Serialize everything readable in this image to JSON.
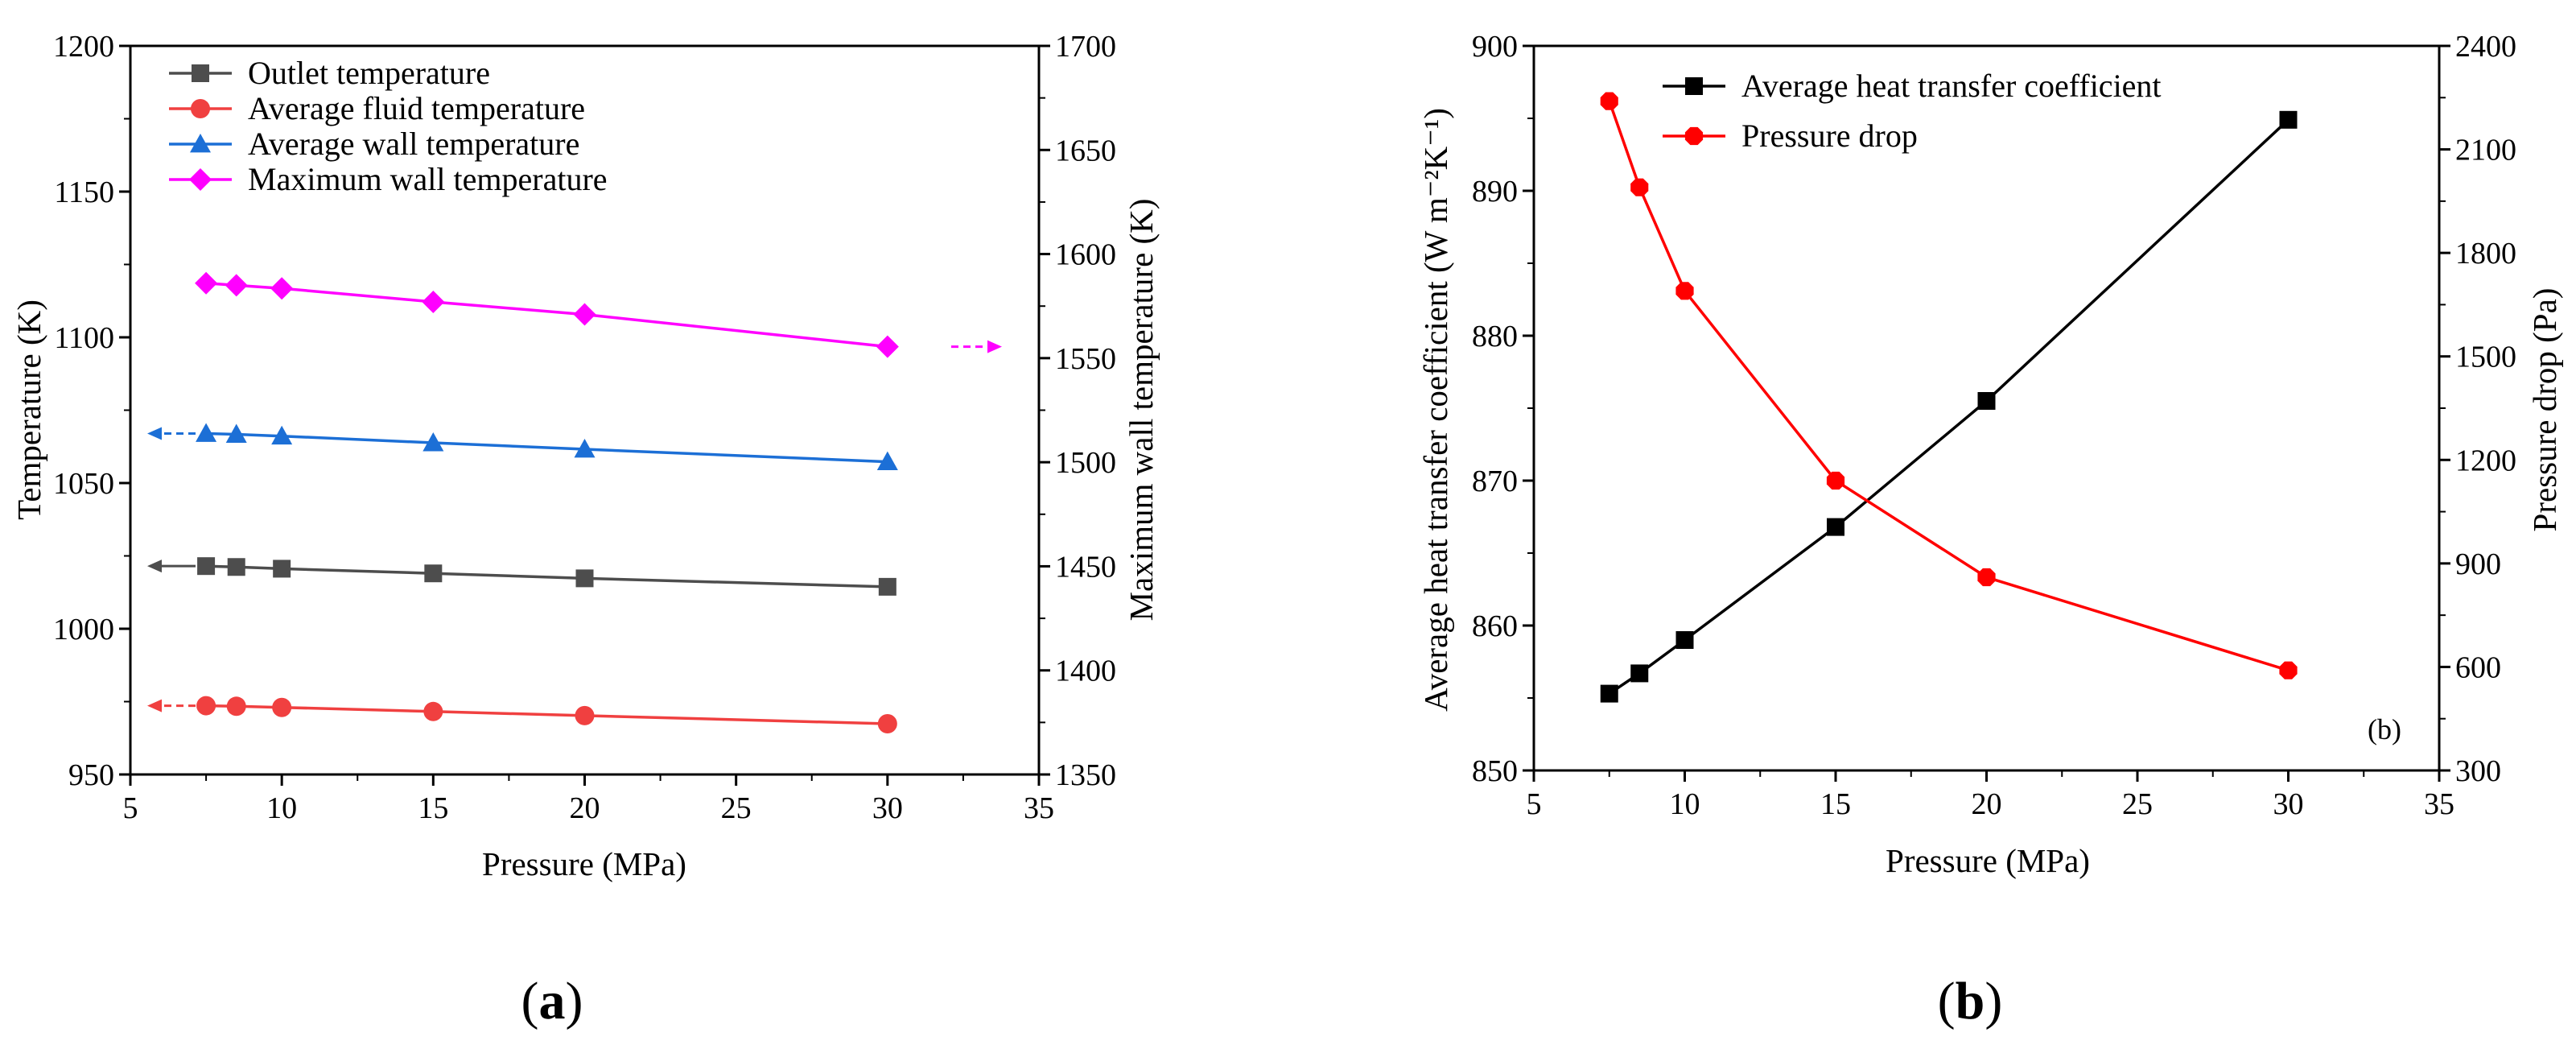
{
  "chart_data": [
    {
      "type": "line",
      "panel_label": "a",
      "panel_open": "(",
      "panel_close": ")",
      "xlabel": "Pressure (MPa)",
      "ylabel": "Temperature (K)",
      "y2label": "Maximum wall temperature (K)",
      "xlim": [
        5,
        35
      ],
      "ylim": [
        950,
        1200
      ],
      "y2lim": [
        1350,
        1700
      ],
      "xticks": [
        "5",
        "10",
        "15",
        "20",
        "25",
        "30",
        "35"
      ],
      "yticks": [
        "950",
        "1000",
        "1050",
        "1100",
        "1150",
        "1200"
      ],
      "y2ticks": [
        "1350",
        "1400",
        "1450",
        "1500",
        "1550",
        "1600",
        "1650",
        "1700"
      ],
      "legend_position": "top",
      "x": [
        7.5,
        8.5,
        10,
        15,
        20,
        30
      ],
      "series": [
        {
          "name": "Outlet temperature",
          "axis": "left",
          "marker": "square",
          "color": "#4d4d4d",
          "arrow": "left",
          "values": [
            1021.5,
            1021.2,
            1020.6,
            1019.0,
            1017.3,
            1014.4
          ]
        },
        {
          "name": "Average fluid temperature",
          "axis": "left",
          "marker": "circle",
          "color": "#f04040",
          "arrow": "left",
          "values": [
            973.6,
            973.4,
            973.0,
            971.6,
            970.2,
            967.4
          ]
        },
        {
          "name": "Average wall temperature",
          "axis": "left",
          "marker": "triangle",
          "color": "#1c6fd6",
          "arrow": "left",
          "values": [
            1067.0,
            1066.7,
            1066.1,
            1063.8,
            1061.6,
            1057.3
          ]
        },
        {
          "name": "Maximum wall temperature",
          "axis": "right",
          "marker": "diamond",
          "color": "#ff00ff",
          "arrow": "right",
          "values": [
            1586.0,
            1585.0,
            1583.5,
            1577.0,
            1571.0,
            1555.5
          ]
        }
      ]
    },
    {
      "type": "line",
      "panel_label": "b",
      "panel_open": "(",
      "panel_close": ")",
      "annotation": "(b)",
      "xlabel": "Pressure (MPa)",
      "ylabel": "Average heat transfer coefficient (W m⁻²K⁻¹)",
      "y2label": "Pressure drop (Pa)",
      "xlim": [
        5,
        35
      ],
      "ylim": [
        850,
        900
      ],
      "y2lim": [
        300,
        2400
      ],
      "xticks": [
        "5",
        "10",
        "15",
        "20",
        "25",
        "30",
        "35"
      ],
      "yticks": [
        "850",
        "860",
        "870",
        "880",
        "890",
        "900"
      ],
      "y2ticks": [
        "300",
        "600",
        "900",
        "1200",
        "1500",
        "1800",
        "2100",
        "2400"
      ],
      "legend_position": "top",
      "x": [
        7.5,
        8.5,
        10,
        15,
        20,
        30
      ],
      "series": [
        {
          "name": "Average heat transfer coefficient",
          "axis": "left",
          "marker": "square",
          "color": "#000000",
          "values": [
            855.3,
            856.7,
            859.0,
            866.8,
            875.5,
            894.9
          ]
        },
        {
          "name": "Pressure drop",
          "axis": "right",
          "marker": "octagon",
          "color": "#ff0000",
          "values": [
            2240,
            1990,
            1690,
            1140,
            860,
            590
          ]
        }
      ]
    }
  ]
}
